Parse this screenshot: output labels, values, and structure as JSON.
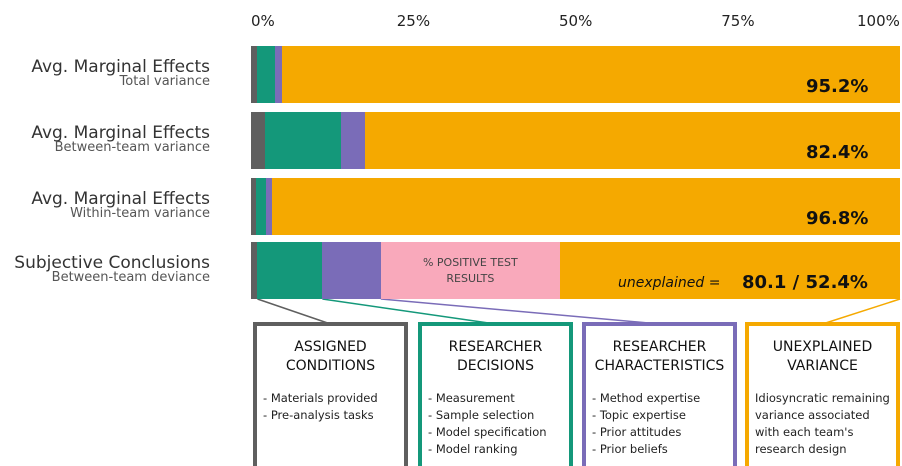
{
  "chart_data": {
    "type": "stacked_bar_horizontal",
    "categories": [
      "Avg. Marginal Effects",
      "Avg. Marginal Effects",
      "Avg. Marginal Effects",
      "Subjective Conclusions"
    ],
    "subtitles": [
      "Total variance",
      "Between-team variance",
      "Within-team variance",
      "Between-team deviance"
    ],
    "xlim": [
      0,
      100
    ],
    "xticks": [
      {
        "value": 0,
        "label": "0%"
      },
      {
        "value": 25,
        "label": "25%"
      },
      {
        "value": 50,
        "label": "50%"
      },
      {
        "value": 75,
        "label": "75%"
      },
      {
        "value": 100,
        "label": "100%"
      }
    ],
    "series": [
      {
        "name": "ASSIGNED CONDITIONS",
        "color": "#5f5f5f",
        "values": [
          1.0,
          2.2,
          0.8,
          1.0
        ],
        "items": [
          "Materials provided",
          "Pre-analysis tasks"
        ]
      },
      {
        "name": "RESEARCHER DECISIONS",
        "color": "#14987a",
        "values": [
          2.7,
          11.7,
          1.5,
          10.0
        ],
        "items": [
          "Measurement",
          "Sample selection",
          "Model specification",
          "Model ranking"
        ]
      },
      {
        "name": "RESEARCHER CHARACTERISTICS",
        "color": "#7a6cb8",
        "values": [
          1.1,
          3.7,
          0.9,
          9.0
        ],
        "items": [
          "Method expertise",
          "Topic expertise",
          "Prior attitudes",
          "Prior beliefs"
        ]
      },
      {
        "name": "% POSITIVE TEST RESULTS",
        "color": "#f9a9bb",
        "values": [
          null,
          null,
          null,
          27.6
        ]
      },
      {
        "name": "UNEXPLAINED VARIANCE",
        "color": "#f5a900",
        "values": [
          95.2,
          82.4,
          96.8,
          52.4
        ],
        "value_labels": [
          "95.2%",
          "82.4%",
          "96.8%",
          "80.1 / 52.4%"
        ],
        "description": "Idiosyncratic remaining variance associated with each team's research design"
      }
    ],
    "annotation": "unexplained ="
  }
}
